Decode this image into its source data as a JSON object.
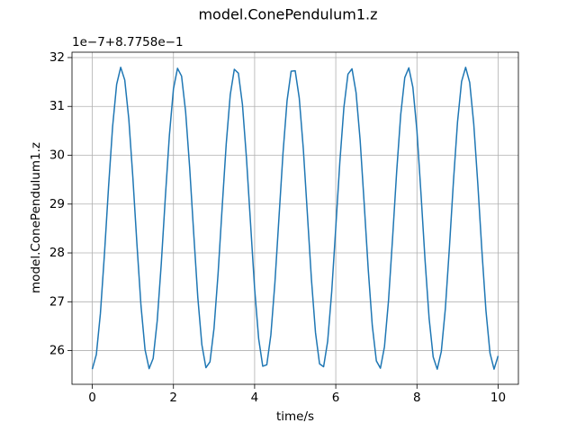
{
  "chart_data": {
    "type": "line",
    "title": "model.ConePendulum1.z",
    "x_label": "time/s",
    "y_label": "model.ConePendulum1.z",
    "y_offset_text": "1e−7+8.7758e−1",
    "xlim": [
      -0.5,
      10.5
    ],
    "ylim": [
      25.31,
      32.11
    ],
    "xticks": [
      0,
      2,
      4,
      6,
      8,
      10
    ],
    "yticks": [
      26,
      27,
      28,
      29,
      30,
      31,
      32
    ],
    "grid": true,
    "x": [
      0,
      0.1,
      0.2,
      0.3,
      0.4,
      0.5,
      0.6,
      0.7,
      0.8,
      0.9,
      1,
      1.1,
      1.2,
      1.3,
      1.4,
      1.5,
      1.6,
      1.7,
      1.8,
      1.9,
      2,
      2.1,
      2.2,
      2.3,
      2.4,
      2.5,
      2.6,
      2.7,
      2.8,
      2.9,
      3,
      3.1,
      3.2,
      3.3,
      3.4,
      3.5,
      3.6,
      3.7,
      3.8,
      3.9,
      4,
      4.1,
      4.2,
      4.3,
      4.4,
      4.5,
      4.6,
      4.7,
      4.8,
      4.9,
      5,
      5.1,
      5.2,
      5.3,
      5.4,
      5.5,
      5.6,
      5.7,
      5.8,
      5.9,
      6,
      6.1,
      6.2,
      6.3,
      6.4,
      6.5,
      6.6,
      6.7,
      6.8,
      6.9,
      7,
      7.1,
      7.2,
      7.3,
      7.4,
      7.5,
      7.6,
      7.7,
      7.8,
      7.9,
      8,
      8.1,
      8.2,
      8.3,
      8.4,
      8.5,
      8.6,
      8.7,
      8.8,
      8.9,
      9,
      9.1,
      9.2,
      9.3,
      9.4,
      9.5,
      9.6,
      9.7,
      9.8,
      9.9,
      10
    ],
    "series": [
      {
        "color": "#1f77b4",
        "values": [
          25.62,
          25.92,
          26.76,
          27.98,
          29.34,
          30.58,
          31.45,
          31.8,
          31.54,
          30.74,
          29.54,
          28.18,
          26.92,
          26.02,
          25.63,
          25.84,
          26.61,
          27.78,
          29.14,
          30.41,
          31.36,
          31.78,
          31.62,
          30.89,
          29.74,
          28.39,
          27.09,
          26.12,
          25.65,
          25.77,
          26.46,
          27.58,
          28.93,
          30.23,
          31.24,
          31.76,
          31.68,
          31.04,
          29.93,
          28.6,
          27.27,
          26.24,
          25.68,
          25.71,
          26.32,
          27.39,
          28.72,
          30.05,
          31.12,
          31.72,
          31.73,
          31.17,
          30.13,
          28.8,
          27.46,
          26.37,
          25.73,
          25.67,
          26.19,
          27.21,
          28.52,
          29.86,
          30.98,
          31.66,
          31.77,
          31.28,
          30.31,
          29.01,
          27.66,
          26.51,
          25.79,
          25.64,
          26.08,
          27.03,
          28.31,
          29.66,
          30.83,
          31.59,
          31.79,
          31.39,
          30.5,
          29.21,
          27.85,
          26.66,
          25.87,
          25.62,
          25.98,
          26.86,
          28.11,
          29.47,
          30.68,
          31.51,
          31.8,
          31.49,
          30.64,
          29.41,
          28.05,
          26.82,
          25.95,
          25.62,
          25.89
        ]
      }
    ]
  }
}
